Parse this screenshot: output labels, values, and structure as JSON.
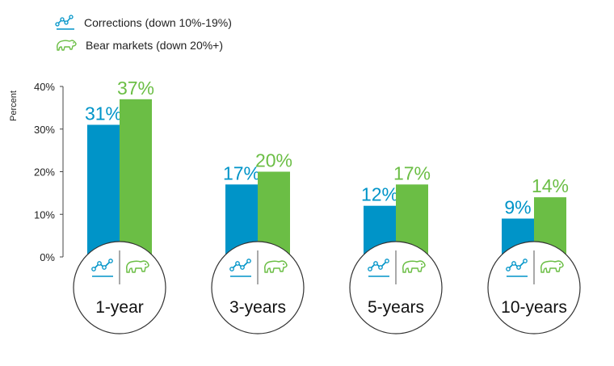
{
  "legend": {
    "corrections_label": "Corrections (down 10%-19%)",
    "bear_label": "Bear markets (down 20%+)",
    "corrections_icon": "trend-line-icon",
    "bear_icon": "bear-icon"
  },
  "colors": {
    "corrections": "#0094C8",
    "bear": "#6BBE45",
    "axis": "#444444",
    "circle_stroke": "#333333"
  },
  "chart_data": {
    "type": "bar",
    "ylabel": "Percent",
    "ylim": [
      0,
      40
    ],
    "yticks": [
      0,
      10,
      20,
      30,
      40
    ],
    "ytick_labels": [
      "0%",
      "10%",
      "20%",
      "30%",
      "40%"
    ],
    "categories": [
      "1-year",
      "3-years",
      "5-years",
      "10-years"
    ],
    "series": [
      {
        "name": "Corrections (down 10%-19%)",
        "values": [
          31,
          17,
          12,
          9
        ],
        "labels": [
          "31%",
          "17%",
          "12%",
          "9%"
        ]
      },
      {
        "name": "Bear markets (down 20%+)",
        "values": [
          37,
          20,
          17,
          14
        ],
        "labels": [
          "37%",
          "20%",
          "17%",
          "14%"
        ]
      }
    ]
  }
}
